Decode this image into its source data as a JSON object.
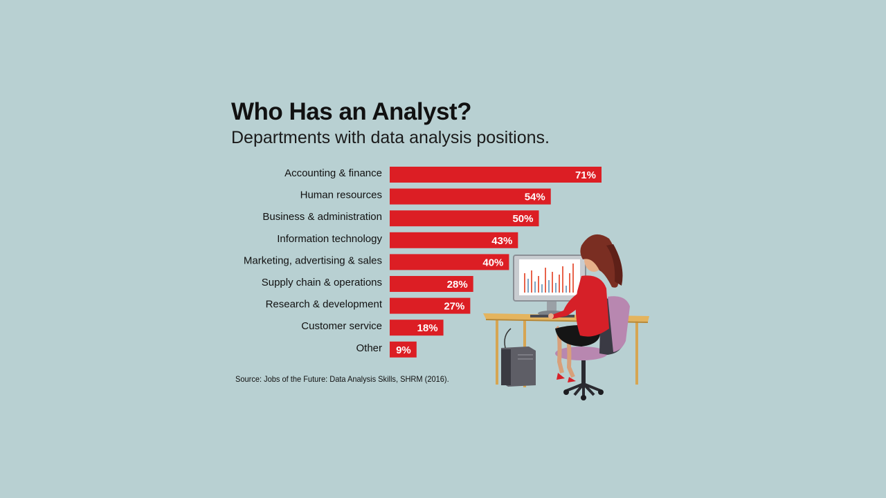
{
  "colors": {
    "background": "#b8d0d2",
    "bar": "#dc1e24",
    "bar_label": "#ffffff",
    "text": "#111111"
  },
  "chart_data": {
    "type": "bar",
    "orientation": "horizontal",
    "title": "Who Has an Analyst?",
    "subtitle": "Departments with data analysis positions.",
    "categories": [
      "Accounting & finance",
      "Human resources",
      "Business & administration",
      "Information technology",
      "Marketing, advertising & sales",
      "Supply chain & operations",
      "Research & development",
      "Customer service",
      "Other"
    ],
    "values": [
      71,
      54,
      50,
      43,
      40,
      28,
      27,
      18,
      9
    ],
    "value_labels": [
      "71%",
      "54%",
      "50%",
      "43%",
      "40%",
      "28%",
      "27%",
      "18%",
      "9%"
    ],
    "unit": "%",
    "xlim": [
      0,
      100
    ],
    "grid": false,
    "source": "Source: Jobs of the Future: Data Analysis Skills, SHRM (2016)."
  }
}
